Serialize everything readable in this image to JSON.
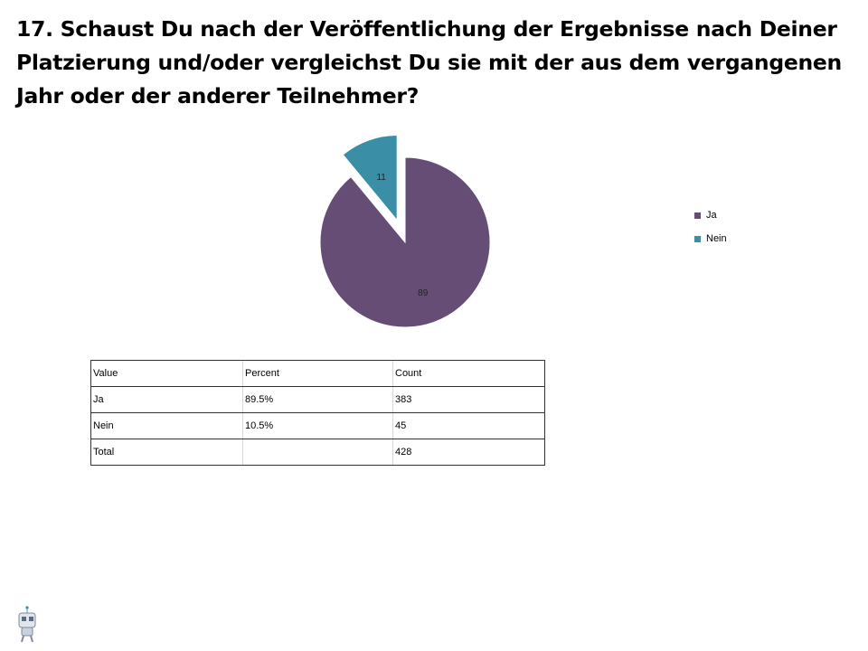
{
  "page": {
    "title": "17. Schaust Du nach der Veröffentlichung der Ergebnisse nach Deiner Platzierung und/oder vergleichst Du sie mit der aus dem vergangenen Jahr oder der anderer Teilnehmer?"
  },
  "chart_data": {
    "type": "pie",
    "categories": [
      "Ja",
      "Nein"
    ],
    "values": [
      89,
      11
    ],
    "colors": [
      "#654d76",
      "#3a8ea5"
    ],
    "exploded": [
      "Nein"
    ],
    "legend": {
      "placement": "right",
      "entries": [
        "Ja",
        "Nein"
      ]
    },
    "data_labels": [
      "89",
      "11"
    ]
  },
  "table": {
    "headers": [
      "Value",
      "Percent",
      "Count"
    ],
    "rows": [
      [
        "Ja",
        "89.5%",
        "383"
      ],
      [
        "Nein",
        "10.5%",
        "45"
      ],
      [
        "Total",
        "",
        "428"
      ]
    ]
  },
  "logo_icon": "robot-mascot-icon"
}
